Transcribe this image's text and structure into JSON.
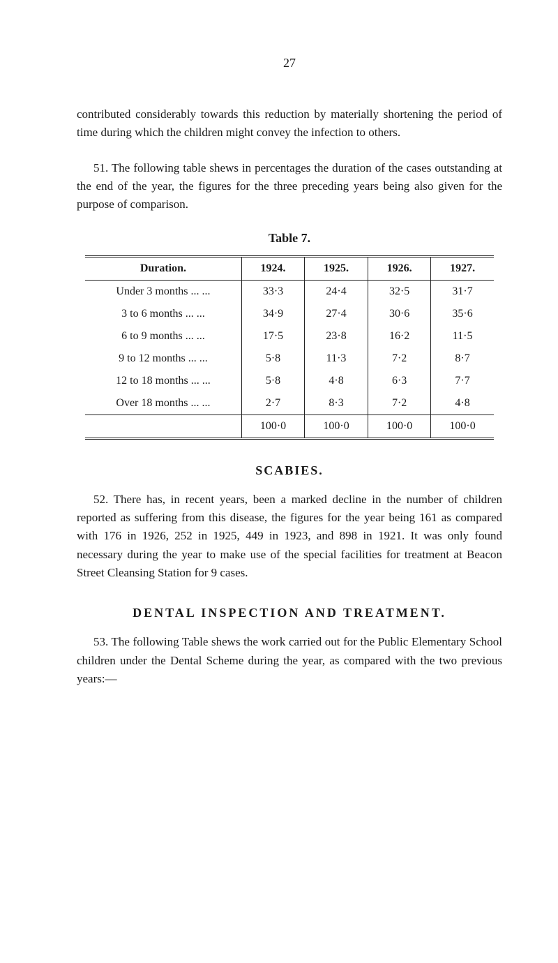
{
  "page_number": "27",
  "para1": "contributed considerably towards this reduction by materially shortening the period of time during which the children might convey the infection to others.",
  "para2": "51. The following table shews in percentages the duration of the cases outstanding at the end of the year, the figures for the three preceding years being also given for the purpose of comparison.",
  "table7": {
    "title": "Table 7.",
    "columns": [
      "Duration.",
      "1924.",
      "1925.",
      "1926.",
      "1927."
    ],
    "rows": [
      [
        "Under 3 months   ...   ...",
        "33·3",
        "24·4",
        "32·5",
        "31·7"
      ],
      [
        "3 to 6 months     ...   ...",
        "34·9",
        "27·4",
        "30·6",
        "35·6"
      ],
      [
        "6 to 9 months     ...   ...",
        "17·5",
        "23·8",
        "16·2",
        "11·5"
      ],
      [
        "9 to 12 months    ...   ...",
        "5·8",
        "11·3",
        "7·2",
        "8·7"
      ],
      [
        "12 to 18 months  ...   ...",
        "5·8",
        "4·8",
        "6·3",
        "7·7"
      ],
      [
        "Over 18 months   ...   ...",
        "2·7",
        "8·3",
        "7·2",
        "4·8"
      ]
    ],
    "totals": [
      "",
      "100·0",
      "100·0",
      "100·0",
      "100·0"
    ]
  },
  "scabies_heading": "SCABIES.",
  "para3": "52. There has, in recent years, been a marked decline in the number of children reported as suffering from this disease, the figures for the year being 161 as compared with 176 in 1926, 252 in 1925, 449 in 1923, and 898 in 1921. It was only found necessary during the year to make use of the special facilities for treatment at Beacon Street Cleansing Station for 9 cases.",
  "dental_heading": "DENTAL  INSPECTION  AND  TREATMENT.",
  "para4": "53. The following Table shews the work carried out for the Public Elementary School children under the Dental Scheme during the year, as compared with the two previous years:—"
}
